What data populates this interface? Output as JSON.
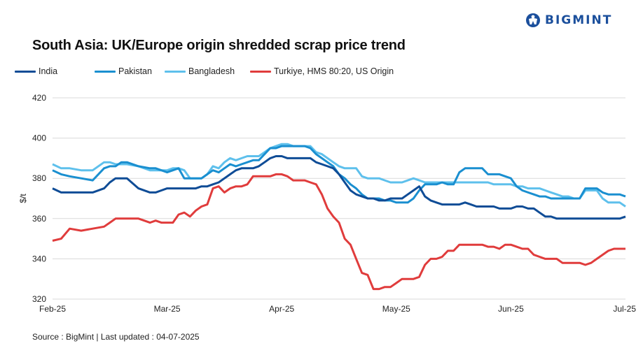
{
  "brand": {
    "name": "BIGMINT",
    "color": "#1b4f9c"
  },
  "chart_data": {
    "type": "line",
    "title": "South Asia: UK/Europe origin shredded scrap price trend",
    "xlabel": "",
    "ylabel": "$/t",
    "ylim": [
      320,
      420
    ],
    "yticks": [
      420,
      400,
      380,
      360,
      340,
      320
    ],
    "xticks": [
      "Feb-25",
      "Mar-25",
      "Apr-25",
      "May-25",
      "Jun-25",
      "Jul-25"
    ],
    "xrange": [
      0,
      1
    ],
    "grid": true,
    "legend_position": "top-left",
    "x": [
      0.0,
      0.015,
      0.03,
      0.05,
      0.07,
      0.09,
      0.1,
      0.11,
      0.12,
      0.13,
      0.15,
      0.17,
      0.18,
      0.19,
      0.2,
      0.21,
      0.22,
      0.23,
      0.24,
      0.25,
      0.26,
      0.27,
      0.28,
      0.29,
      0.3,
      0.31,
      0.32,
      0.33,
      0.34,
      0.35,
      0.36,
      0.37,
      0.38,
      0.39,
      0.4,
      0.41,
      0.42,
      0.43,
      0.44,
      0.45,
      0.46,
      0.47,
      0.48,
      0.49,
      0.5,
      0.51,
      0.52,
      0.53,
      0.54,
      0.55,
      0.56,
      0.57,
      0.58,
      0.59,
      0.6,
      0.61,
      0.62,
      0.63,
      0.64,
      0.65,
      0.66,
      0.67,
      0.68,
      0.69,
      0.7,
      0.71,
      0.72,
      0.73,
      0.74,
      0.75,
      0.76,
      0.77,
      0.78,
      0.79,
      0.8,
      0.81,
      0.82,
      0.83,
      0.84,
      0.85,
      0.86,
      0.87,
      0.88,
      0.89,
      0.9,
      0.91,
      0.92,
      0.93,
      0.94,
      0.95,
      0.96,
      0.97,
      0.98,
      0.99,
      1.0
    ],
    "series": [
      {
        "name": "India",
        "color": "#0f4c96",
        "values": [
          375,
          373,
          373,
          373,
          373,
          375,
          378,
          380,
          380,
          380,
          375,
          373,
          373,
          374,
          375,
          375,
          375,
          375,
          375,
          375,
          376,
          376,
          377,
          378,
          380,
          382,
          384,
          385,
          385,
          385,
          386,
          388,
          390,
          391,
          391,
          390,
          390,
          390,
          390,
          390,
          388,
          387,
          386,
          385,
          382,
          378,
          374,
          372,
          371,
          370,
          370,
          369,
          369,
          370,
          370,
          370,
          372,
          374,
          376,
          371,
          369,
          368,
          367,
          367,
          367,
          367,
          368,
          367,
          366,
          366,
          366,
          366,
          365,
          365,
          365,
          366,
          366,
          365,
          365,
          363,
          361,
          361,
          360,
          360,
          360,
          360,
          360,
          360,
          360,
          360,
          360,
          360,
          360,
          360,
          361
        ]
      },
      {
        "name": "Pakistan",
        "color": "#1a8fd0",
        "values": [
          384,
          382,
          381,
          380,
          379,
          385,
          386,
          386,
          388,
          388,
          386,
          385,
          385,
          384,
          383,
          384,
          385,
          380,
          380,
          380,
          380,
          382,
          384,
          383,
          385,
          387,
          386,
          387,
          388,
          389,
          389,
          392,
          395,
          395,
          396,
          396,
          396,
          396,
          396,
          395,
          392,
          390,
          388,
          386,
          382,
          380,
          377,
          375,
          372,
          370,
          370,
          370,
          369,
          369,
          368,
          368,
          368,
          370,
          374,
          377,
          377,
          377,
          378,
          377,
          377,
          383,
          385,
          385,
          385,
          385,
          382,
          382,
          382,
          381,
          380,
          376,
          374,
          373,
          372,
          371,
          371,
          370,
          370,
          370,
          370,
          370,
          370,
          375,
          375,
          375,
          373,
          372,
          372,
          372,
          371
        ]
      },
      {
        "name": "Bangladesh",
        "color": "#5ec0ec",
        "values": [
          387,
          385,
          385,
          384,
          384,
          388,
          388,
          387,
          387,
          387,
          386,
          384,
          384,
          384,
          384,
          385,
          385,
          384,
          380,
          380,
          380,
          382,
          386,
          385,
          388,
          390,
          389,
          390,
          391,
          391,
          391,
          393,
          395,
          396,
          397,
          397,
          396,
          396,
          396,
          396,
          393,
          392,
          390,
          388,
          386,
          385,
          385,
          385,
          381,
          380,
          380,
          380,
          379,
          378,
          378,
          378,
          379,
          380,
          379,
          378,
          378,
          378,
          378,
          378,
          378,
          378,
          378,
          378,
          378,
          378,
          378,
          377,
          377,
          377,
          377,
          376,
          376,
          375,
          375,
          375,
          374,
          373,
          372,
          371,
          371,
          370,
          370,
          374,
          374,
          374,
          370,
          368,
          368,
          368,
          366
        ]
      },
      {
        "name": "Turkiye, HMS 80:20, US Origin",
        "color": "#e03c3c",
        "values": [
          349,
          350,
          355,
          354,
          355,
          356,
          358,
          360,
          360,
          360,
          360,
          358,
          359,
          358,
          358,
          358,
          362,
          363,
          361,
          364,
          366,
          367,
          375,
          376,
          373,
          375,
          376,
          376,
          377,
          381,
          381,
          381,
          381,
          382,
          382,
          381,
          379,
          379,
          379,
          378,
          377,
          372,
          365,
          361,
          358,
          350,
          347,
          340,
          333,
          332,
          325,
          325,
          326,
          326,
          328,
          330,
          330,
          330,
          331,
          337,
          340,
          340,
          341,
          344,
          344,
          347,
          347,
          347,
          347,
          347,
          346,
          346,
          345,
          347,
          347,
          346,
          345,
          345,
          342,
          341,
          340,
          340,
          340,
          338,
          338,
          338,
          338,
          337,
          338,
          340,
          342,
          344,
          345,
          345,
          345
        ]
      }
    ]
  },
  "footer": {
    "source": "Source : BigMint | Last updated : 04-07-2025"
  }
}
